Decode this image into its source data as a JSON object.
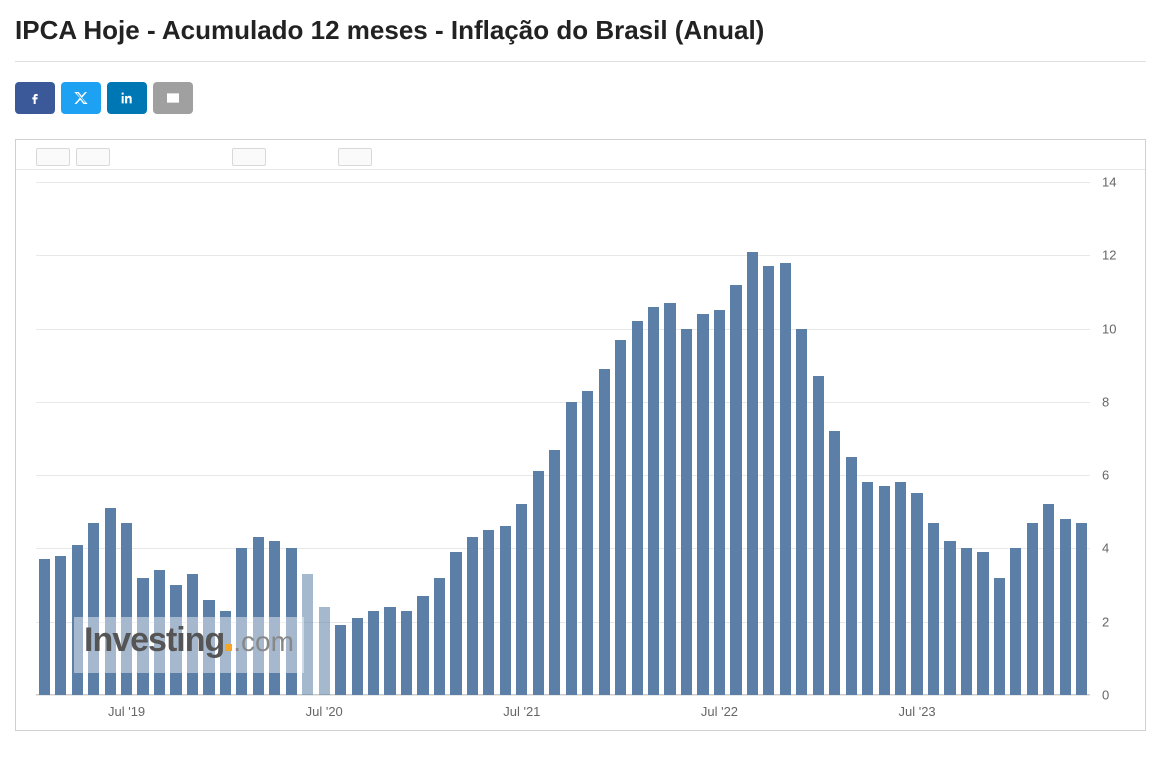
{
  "title": "IPCA Hoje - Acumulado 12 meses - Inflação do Brasil (Anual)",
  "share": {
    "facebook_color": "#3b5998",
    "twitter_color": "#1da1f2",
    "linkedin_color": "#0077b5",
    "email_color": "#a0a0a0"
  },
  "watermark": {
    "main": "Investing",
    "suffix": ".com",
    "main_color": "#555555",
    "suffix_color": "#888888",
    "dot_color": "#f5a623",
    "main_fontsize": 34,
    "suffix_fontsize": 28
  },
  "chart": {
    "type": "bar",
    "bar_color": "#5b7fa6",
    "bar_color_faded_opacity": 0.55,
    "background_color": "#ffffff",
    "grid_color": "#e8e8e8",
    "border_color": "#d0d0d0",
    "ylim": [
      0,
      14
    ],
    "ytick_step": 2,
    "y_ticks": [
      0,
      2,
      4,
      6,
      8,
      10,
      12,
      14
    ],
    "x_tick_labels": [
      "Jul '19",
      "Jul '20",
      "Jul '21",
      "Jul '22",
      "Jul '23"
    ],
    "x_tick_indices": [
      5,
      17,
      29,
      41,
      53
    ],
    "label_fontsize": 13,
    "label_color": "#666666",
    "bar_width_ratio": 0.68,
    "faded_indices": [
      16,
      17
    ],
    "values": [
      3.7,
      3.8,
      4.1,
      4.7,
      5.1,
      4.7,
      3.2,
      3.4,
      3.0,
      3.3,
      2.6,
      2.3,
      4.0,
      4.3,
      4.2,
      4.0,
      3.3,
      2.4,
      1.9,
      2.1,
      2.3,
      2.4,
      2.3,
      2.7,
      3.2,
      3.9,
      4.3,
      4.5,
      4.6,
      5.2,
      6.1,
      6.7,
      8.0,
      8.3,
      8.9,
      9.7,
      10.2,
      10.6,
      10.7,
      10.0,
      10.4,
      10.5,
      11.2,
      12.1,
      11.7,
      11.8,
      10.0,
      8.7,
      7.2,
      6.5,
      5.8,
      5.7,
      5.8,
      5.5,
      4.7,
      4.2,
      4.0,
      3.9,
      3.2,
      4.0,
      4.7,
      5.2,
      4.8,
      4.7
    ]
  }
}
